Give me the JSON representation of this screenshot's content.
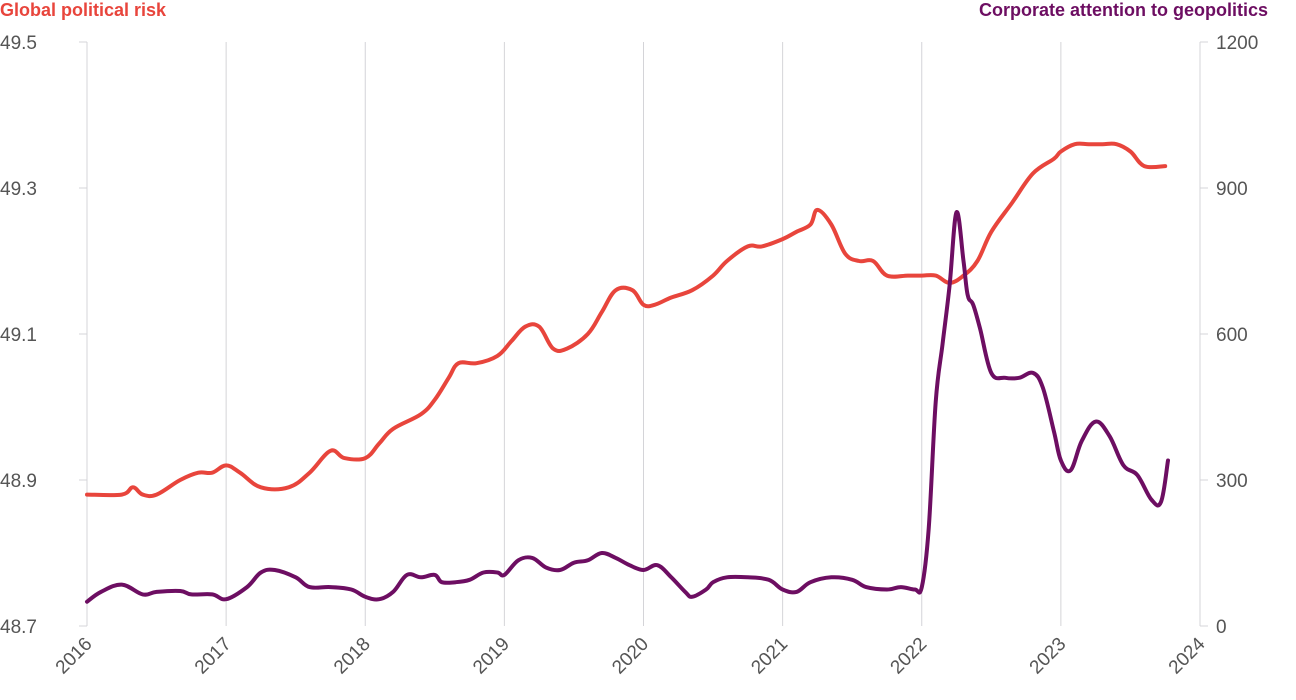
{
  "chart_data": {
    "type": "line",
    "title": "",
    "legend": {
      "left_series_title": "Global political risk",
      "right_series_title": "Corporate attention to geopolitics"
    },
    "colors": {
      "left_series": "#e8453c",
      "right_series": "#6d0e62",
      "gridline": "#d4d4d8",
      "axis_text": "#555555"
    },
    "x_ticks": [
      "2016",
      "2017",
      "2018",
      "2019",
      "2020",
      "2021",
      "2022",
      "2023",
      "2024"
    ],
    "xlim": [
      2016,
      2024
    ],
    "y_left": {
      "ylim": [
        48.7,
        49.5
      ],
      "ticks": [
        "48.7",
        "48.9",
        "49.1",
        "49.3",
        "49.5"
      ]
    },
    "y_right": {
      "ylim": [
        0,
        1200
      ],
      "ticks": [
        "0",
        "300",
        "600",
        "900",
        "1200"
      ]
    },
    "series": [
      {
        "name": "Global political risk",
        "axis": "left",
        "x": [
          2016.0,
          2016.25,
          2016.33,
          2016.4,
          2016.5,
          2016.67,
          2016.8,
          2016.9,
          2017.0,
          2017.1,
          2017.25,
          2017.45,
          2017.6,
          2017.75,
          2017.85,
          2018.0,
          2018.1,
          2018.2,
          2018.4,
          2018.5,
          2018.6,
          2018.67,
          2018.8,
          2018.95,
          2019.05,
          2019.15,
          2019.25,
          2019.35,
          2019.45,
          2019.6,
          2019.7,
          2019.8,
          2019.92,
          2020.0,
          2020.08,
          2020.2,
          2020.35,
          2020.5,
          2020.6,
          2020.75,
          2020.85,
          2021.0,
          2021.1,
          2021.2,
          2021.25,
          2021.35,
          2021.45,
          2021.55,
          2021.65,
          2021.75,
          2021.9,
          2022.0,
          2022.1,
          2022.2,
          2022.3,
          2022.4,
          2022.5,
          2022.65,
          2022.8,
          2022.95,
          2023.0,
          2023.1,
          2023.2,
          2023.3,
          2023.4,
          2023.5,
          2023.6,
          2023.75
        ],
        "values": [
          48.88,
          48.88,
          48.89,
          48.88,
          48.88,
          48.9,
          48.91,
          48.91,
          48.92,
          48.91,
          48.89,
          48.89,
          48.91,
          48.94,
          48.93,
          48.93,
          48.95,
          48.97,
          48.99,
          49.01,
          49.04,
          49.06,
          49.06,
          49.07,
          49.09,
          49.11,
          49.11,
          49.08,
          49.08,
          49.1,
          49.13,
          49.16,
          49.16,
          49.14,
          49.14,
          49.15,
          49.16,
          49.18,
          49.2,
          49.22,
          49.22,
          49.23,
          49.24,
          49.25,
          49.27,
          49.25,
          49.21,
          49.2,
          49.2,
          49.18,
          49.18,
          49.18,
          49.18,
          49.17,
          49.18,
          49.2,
          49.24,
          49.28,
          49.32,
          49.34,
          49.35,
          49.36,
          49.36,
          49.36,
          49.36,
          49.35,
          49.33,
          49.33
        ]
      },
      {
        "name": "Corporate attention to geopolitics",
        "axis": "right",
        "x": [
          2016.0,
          2016.1,
          2016.25,
          2016.4,
          2016.5,
          2016.67,
          2016.75,
          2016.9,
          2017.0,
          2017.15,
          2017.25,
          2017.35,
          2017.5,
          2017.6,
          2017.75,
          2017.9,
          2018.0,
          2018.1,
          2018.2,
          2018.3,
          2018.4,
          2018.5,
          2018.55,
          2018.65,
          2018.75,
          2018.85,
          2018.95,
          2019.0,
          2019.1,
          2019.2,
          2019.3,
          2019.4,
          2019.5,
          2019.6,
          2019.7,
          2019.8,
          2019.9,
          2020.0,
          2020.1,
          2020.2,
          2020.3,
          2020.35,
          2020.45,
          2020.5,
          2020.6,
          2020.75,
          2020.9,
          2021.0,
          2021.1,
          2021.2,
          2021.35,
          2021.5,
          2021.6,
          2021.75,
          2021.85,
          2021.95,
          2022.0,
          2022.05,
          2022.1,
          2022.15,
          2022.2,
          2022.25,
          2022.3,
          2022.33,
          2022.37,
          2022.42,
          2022.5,
          2022.6,
          2022.7,
          2022.8,
          2022.87,
          2022.95,
          2023.0,
          2023.07,
          2023.15,
          2023.25,
          2023.35,
          2023.45,
          2023.55,
          2023.65,
          2023.72,
          2023.77
        ],
        "values": [
          50,
          70,
          85,
          65,
          70,
          72,
          65,
          65,
          55,
          80,
          110,
          115,
          100,
          80,
          80,
          75,
          60,
          55,
          70,
          105,
          100,
          105,
          90,
          90,
          95,
          110,
          110,
          105,
          135,
          140,
          120,
          115,
          130,
          135,
          150,
          140,
          125,
          115,
          125,
          100,
          70,
          60,
          75,
          90,
          100,
          100,
          95,
          75,
          70,
          90,
          100,
          95,
          80,
          75,
          80,
          75,
          80,
          200,
          460,
          580,
          700,
          850,
          750,
          680,
          660,
          610,
          520,
          510,
          510,
          520,
          490,
          400,
          340,
          320,
          380,
          420,
          390,
          330,
          310,
          260,
          255,
          340
        ]
      }
    ]
  }
}
